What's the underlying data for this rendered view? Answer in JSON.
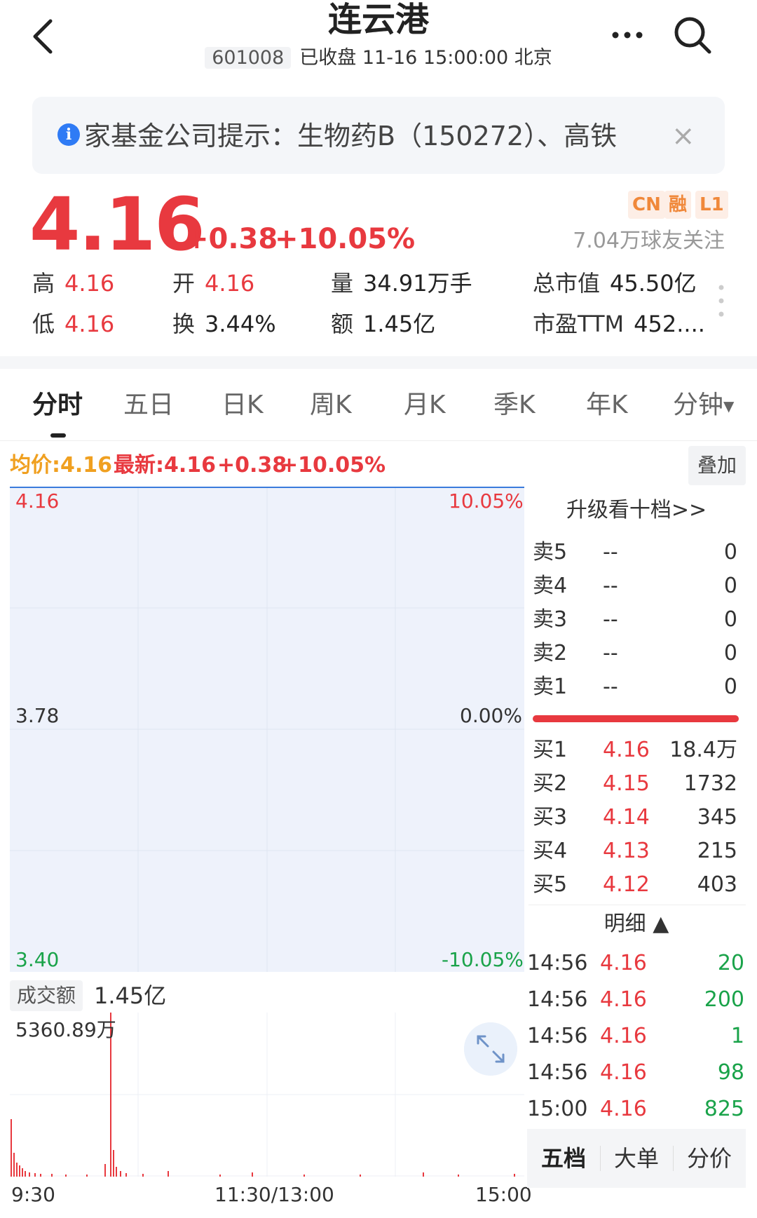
{
  "header": {
    "title": "连云港",
    "code": "601008",
    "status": "已收盘 11-16 15:00:00 北京"
  },
  "notice": {
    "info_icon": "i",
    "text": "家基金公司提示：生物药B（150272）、高铁",
    "close_icon": "×"
  },
  "quote": {
    "price": "4.16",
    "change": "+0.38",
    "change_pct": "+10.05%",
    "badges": [
      "CN",
      "融",
      "L1"
    ],
    "followers": "7.04万球友关注",
    "stats": {
      "high_label": "高",
      "high": "4.16",
      "open_label": "开",
      "open": "4.16",
      "volume_label": "量",
      "volume": "34.91万手",
      "mktcap_label": "总市值",
      "mktcap": "45.50亿",
      "low_label": "低",
      "low": "4.16",
      "turnover_label": "换",
      "turnover": "3.44%",
      "amount_label": "额",
      "amount": "1.45亿",
      "pe_label": "市盈TTM",
      "pe": "452...."
    }
  },
  "tabs": [
    "分时",
    "五日",
    "日K",
    "周K",
    "月K",
    "季K",
    "年K",
    "分钟"
  ],
  "active_tab": 0,
  "info_line": {
    "avg": "均价:4.16",
    "latest": "最新:4.16",
    "chg": "+0.38",
    "pct": "+10.05%",
    "overlay_button": "叠加"
  },
  "chart": {
    "price_high": "4.16",
    "price_mid": "3.78",
    "price_low": "3.40",
    "pct_high": "10.05%",
    "pct_mid": "0.00%",
    "pct_low": "-10.05%",
    "volume_label": "成交额",
    "volume_value": "1.45亿",
    "volume_max": "5360.89万",
    "time_start": "9:30",
    "time_mid": "11:30/13:00",
    "time_end": "15:00"
  },
  "order_book": {
    "upgrade": "升级看十档>>",
    "asks": [
      {
        "label": "卖5",
        "price": "--",
        "vol": "0"
      },
      {
        "label": "卖4",
        "price": "--",
        "vol": "0"
      },
      {
        "label": "卖3",
        "price": "--",
        "vol": "0"
      },
      {
        "label": "卖2",
        "price": "--",
        "vol": "0"
      },
      {
        "label": "卖1",
        "price": "--",
        "vol": "0"
      }
    ],
    "bids": [
      {
        "label": "买1",
        "price": "4.16",
        "vol": "18.4万"
      },
      {
        "label": "买2",
        "price": "4.15",
        "vol": "1732"
      },
      {
        "label": "买3",
        "price": "4.14",
        "vol": "345"
      },
      {
        "label": "买4",
        "price": "4.13",
        "vol": "215"
      },
      {
        "label": "买5",
        "price": "4.12",
        "vol": "403"
      }
    ],
    "detail_label": "明细 ▲"
  },
  "ticks": [
    {
      "time": "14:56",
      "price": "4.16",
      "vol": "20"
    },
    {
      "time": "14:56",
      "price": "4.16",
      "vol": "200"
    },
    {
      "time": "14:56",
      "price": "4.16",
      "vol": "1"
    },
    {
      "time": "14:56",
      "price": "4.16",
      "vol": "98"
    },
    {
      "time": "15:00",
      "price": "4.16",
      "vol": "825"
    }
  ],
  "bottom_tabs": [
    "五档",
    "大单",
    "分价"
  ],
  "colors": {
    "up": "#e8393f",
    "down": "#1aa34a",
    "accent": "#2f7bf5"
  }
}
